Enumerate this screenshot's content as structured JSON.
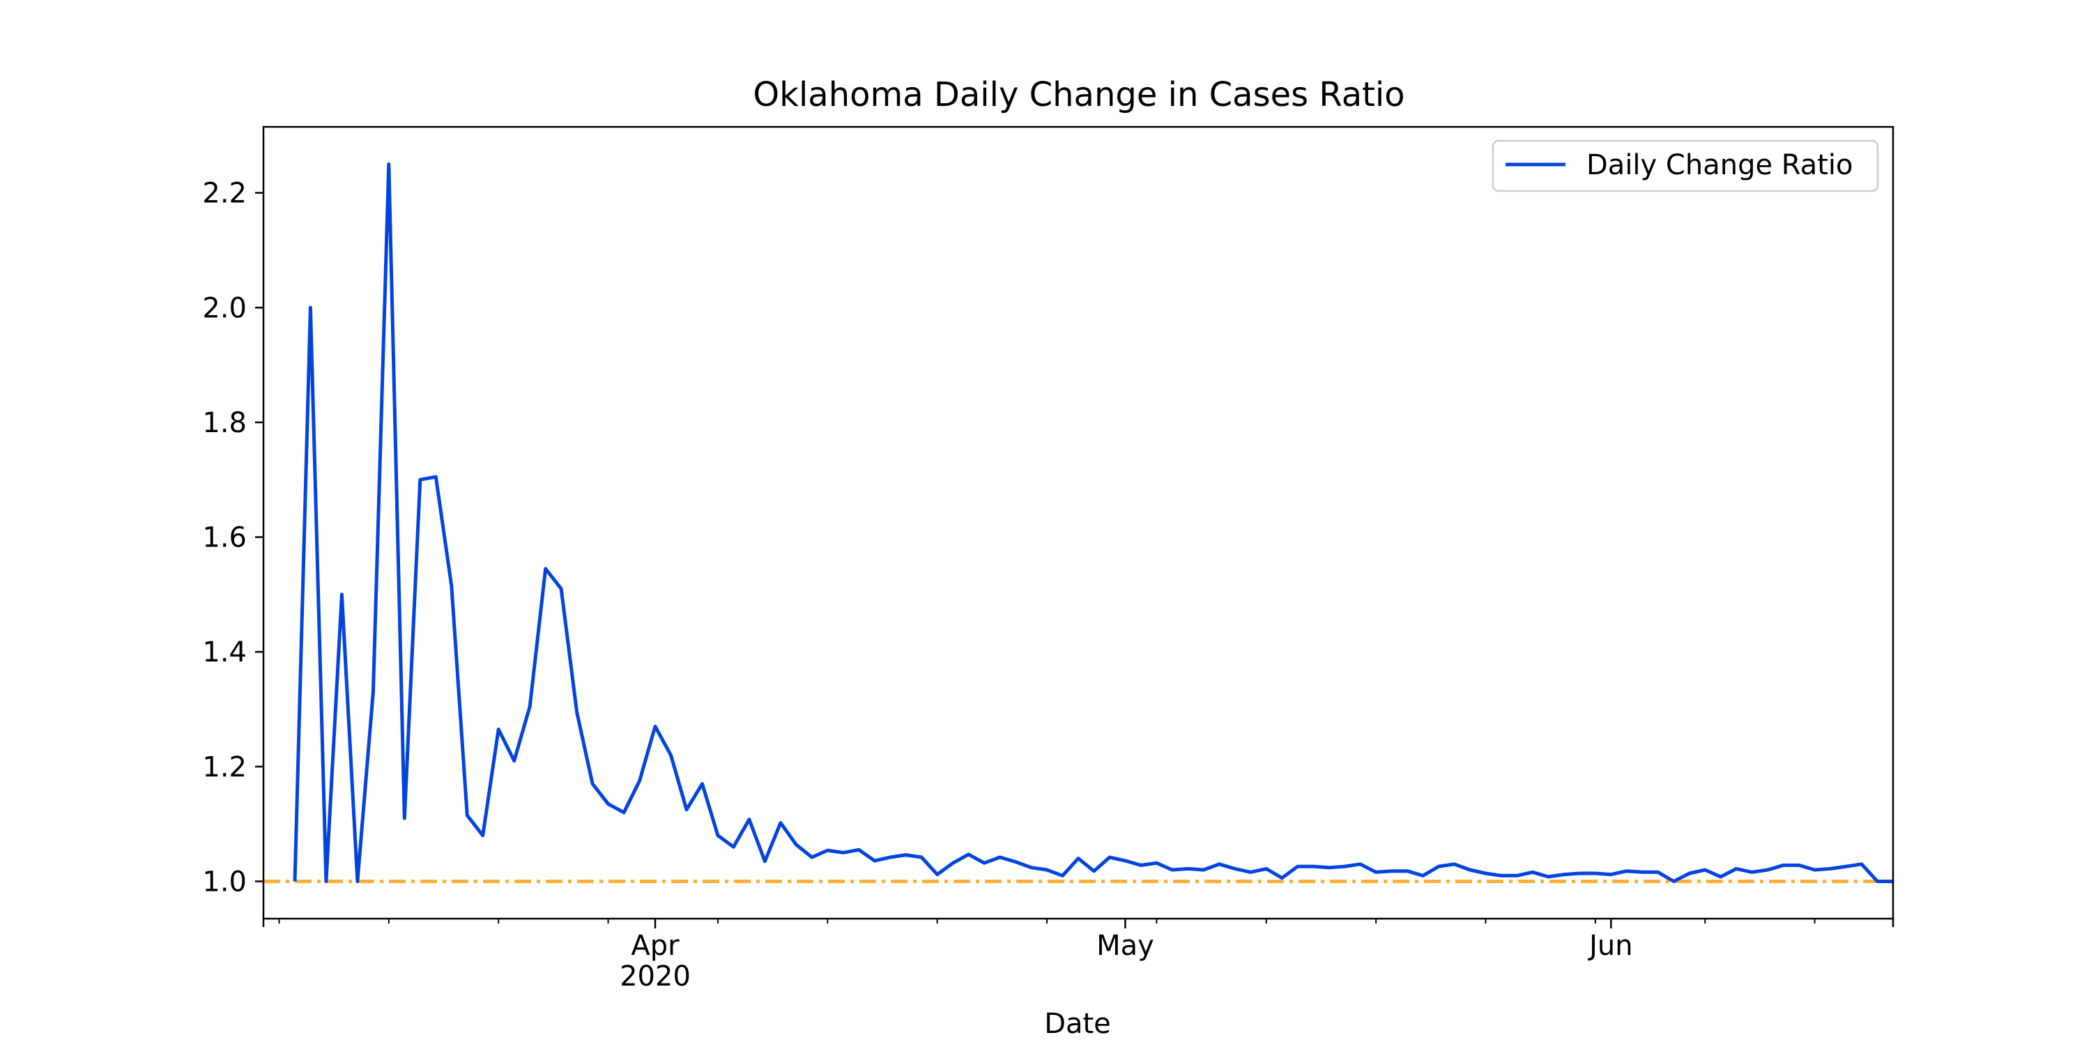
{
  "chart_data": {
    "type": "line",
    "title": "Oklahoma Daily Change in Cases Ratio",
    "xlabel": "Date",
    "ylabel": "",
    "xlim": [
      "2020-03-07",
      "2020-06-19"
    ],
    "ylim": [
      0.935,
      2.315
    ],
    "x_ticks": [
      {
        "date": "2020-04-01",
        "label": "Apr",
        "sublabel": "2020"
      },
      {
        "date": "2020-05-01",
        "label": "May",
        "sublabel": ""
      },
      {
        "date": "2020-06-01",
        "label": "Jun",
        "sublabel": ""
      }
    ],
    "y_ticks": [
      {
        "value": 1.0,
        "label": "1.0"
      },
      {
        "value": 1.2,
        "label": "1.2"
      },
      {
        "value": 1.4,
        "label": "1.4"
      },
      {
        "value": 1.6,
        "label": "1.6"
      },
      {
        "value": 1.8,
        "label": "1.8"
      },
      {
        "value": 2.0,
        "label": "2.0"
      },
      {
        "value": 2.2,
        "label": "2.2"
      }
    ],
    "grid": false,
    "legend_position": "top-right",
    "reference_line": {
      "value": 1.0,
      "color": "#ffb03b",
      "style": "dash-dot"
    },
    "series": [
      {
        "name": "Daily Change Ratio",
        "color": "#0343df",
        "x": [
          "2020-03-09",
          "2020-03-10",
          "2020-03-11",
          "2020-03-12",
          "2020-03-13",
          "2020-03-14",
          "2020-03-15",
          "2020-03-16",
          "2020-03-17",
          "2020-03-18",
          "2020-03-19",
          "2020-03-20",
          "2020-03-21",
          "2020-03-22",
          "2020-03-23",
          "2020-03-24",
          "2020-03-25",
          "2020-03-26",
          "2020-03-27",
          "2020-03-28",
          "2020-03-29",
          "2020-03-30",
          "2020-03-31",
          "2020-04-01",
          "2020-04-02",
          "2020-04-03",
          "2020-04-04",
          "2020-04-05",
          "2020-04-06",
          "2020-04-07",
          "2020-04-08",
          "2020-04-09",
          "2020-04-10",
          "2020-04-11",
          "2020-04-12",
          "2020-04-13",
          "2020-04-14",
          "2020-04-15",
          "2020-04-16",
          "2020-04-17",
          "2020-04-18",
          "2020-04-19",
          "2020-04-20",
          "2020-04-21",
          "2020-04-22",
          "2020-04-23",
          "2020-04-24",
          "2020-04-25",
          "2020-04-26",
          "2020-04-27",
          "2020-04-28",
          "2020-04-29",
          "2020-04-30",
          "2020-05-01",
          "2020-05-02",
          "2020-05-03",
          "2020-05-04",
          "2020-05-05",
          "2020-05-06",
          "2020-05-07",
          "2020-05-08",
          "2020-05-09",
          "2020-05-10",
          "2020-05-11",
          "2020-05-12",
          "2020-05-13",
          "2020-05-14",
          "2020-05-15",
          "2020-05-16",
          "2020-05-17",
          "2020-05-18",
          "2020-05-19",
          "2020-05-20",
          "2020-05-21",
          "2020-05-22",
          "2020-05-23",
          "2020-05-24",
          "2020-05-25",
          "2020-05-26",
          "2020-05-27",
          "2020-05-28",
          "2020-05-29",
          "2020-05-30",
          "2020-05-31",
          "2020-06-01",
          "2020-06-02",
          "2020-06-03",
          "2020-06-04",
          "2020-06-05",
          "2020-06-06",
          "2020-06-07",
          "2020-06-08",
          "2020-06-09",
          "2020-06-10",
          "2020-06-11",
          "2020-06-12",
          "2020-06-13",
          "2020-06-14",
          "2020-06-15",
          "2020-06-16",
          "2020-06-17",
          "2020-06-18",
          "2020-06-19"
        ],
        "y": [
          1.0,
          2.0,
          1.0,
          1.5,
          1.0,
          1.33,
          2.25,
          1.11,
          1.7,
          1.705,
          1.515,
          1.115,
          1.08,
          1.265,
          1.21,
          1.305,
          1.545,
          1.51,
          1.295,
          1.17,
          1.135,
          1.12,
          1.175,
          1.27,
          1.22,
          1.125,
          1.17,
          1.08,
          1.06,
          1.108,
          1.035,
          1.102,
          1.064,
          1.042,
          1.054,
          1.05,
          1.055,
          1.036,
          1.042,
          1.046,
          1.042,
          1.012,
          1.032,
          1.047,
          1.032,
          1.042,
          1.034,
          1.024,
          1.02,
          1.01,
          1.04,
          1.018,
          1.042,
          1.036,
          1.028,
          1.032,
          1.02,
          1.022,
          1.02,
          1.03,
          1.022,
          1.016,
          1.022,
          1.006,
          1.026,
          1.026,
          1.024,
          1.026,
          1.03,
          1.016,
          1.018,
          1.018,
          1.01,
          1.026,
          1.03,
          1.02,
          1.014,
          1.01,
          1.01,
          1.016,
          1.008,
          1.012,
          1.014,
          1.014,
          1.012,
          1.018,
          1.016,
          1.016,
          1.0,
          1.014,
          1.02,
          1.008,
          1.022,
          1.016,
          1.02,
          1.028,
          1.028,
          1.02,
          1.022,
          1.026,
          1.03,
          1.0,
          1.0
        ]
      }
    ]
  }
}
